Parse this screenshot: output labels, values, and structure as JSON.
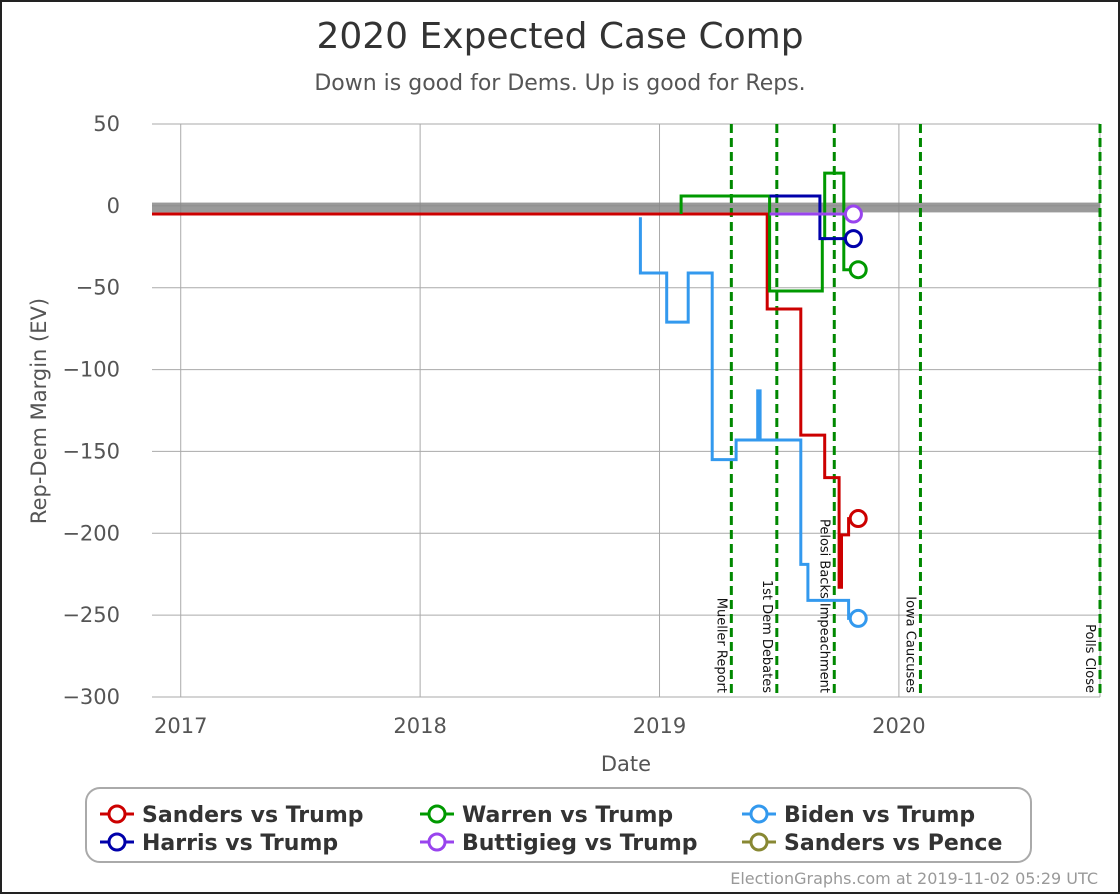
{
  "chart_data": {
    "type": "line",
    "title": "2020 Expected Case Comp",
    "subtitle": "Down is good for Dems. Up is good for Reps.",
    "xlabel": "Date",
    "ylabel": "Rep-Dem Margin (EV)",
    "xlim": [
      2016.88,
      2020.84
    ],
    "ylim": [
      -300,
      50
    ],
    "x_ticks": [
      {
        "value": 2017,
        "label": "2017"
      },
      {
        "value": 2018,
        "label": "2018"
      },
      {
        "value": 2019,
        "label": "2019"
      },
      {
        "value": 2020,
        "label": "2020"
      }
    ],
    "y_ticks": [
      {
        "value": 50,
        "label": "50"
      },
      {
        "value": 0,
        "label": "0"
      },
      {
        "value": -50,
        "label": "−50"
      },
      {
        "value": -100,
        "label": "−100"
      },
      {
        "value": -150,
        "label": "−150"
      },
      {
        "value": -200,
        "label": "−200"
      },
      {
        "value": -250,
        "label": "−250"
      },
      {
        "value": -300,
        "label": "−300"
      }
    ],
    "grid": true,
    "zero_band": [
      -4,
      2
    ],
    "events": [
      {
        "label": "Mueller Report",
        "x": 2019.3
      },
      {
        "label": "1st Dem Debates",
        "x": 2019.49
      },
      {
        "label": "Pelosi Backs Impeachment",
        "x": 2019.73
      },
      {
        "label": "Iowa Caucuses",
        "x": 2020.09
      },
      {
        "label": "Polls Close",
        "x": 2020.84
      }
    ],
    "series": [
      {
        "name": "Sanders vs Trump",
        "color": "#cc0000",
        "points": [
          [
            2016.88,
            -5
          ],
          [
            2019.45,
            -5
          ],
          [
            2019.45,
            -63
          ],
          [
            2019.59,
            -63
          ],
          [
            2019.59,
            -140
          ],
          [
            2019.69,
            -140
          ],
          [
            2019.69,
            -166
          ],
          [
            2019.75,
            -166
          ],
          [
            2019.75,
            -233
          ],
          [
            2019.76,
            -233
          ],
          [
            2019.76,
            -201
          ],
          [
            2019.79,
            -201
          ],
          [
            2019.79,
            -191
          ],
          [
            2019.83,
            -191
          ]
        ],
        "end_marker": [
          2019.83,
          -191
        ]
      },
      {
        "name": "Warren vs Trump",
        "color": "#009900",
        "points": [
          [
            2019.09,
            -5
          ],
          [
            2019.09,
            6
          ],
          [
            2019.46,
            6
          ],
          [
            2019.46,
            -52
          ],
          [
            2019.68,
            -52
          ],
          [
            2019.68,
            -20
          ],
          [
            2019.69,
            -20
          ],
          [
            2019.69,
            20
          ],
          [
            2019.77,
            20
          ],
          [
            2019.77,
            -39
          ],
          [
            2019.83,
            -39
          ]
        ],
        "end_marker": [
          2019.83,
          -39
        ]
      },
      {
        "name": "Biden vs Trump",
        "color": "#3399ee",
        "points": [
          [
            2018.92,
            -7
          ],
          [
            2018.92,
            -41
          ],
          [
            2019.03,
            -41
          ],
          [
            2019.03,
            -71
          ],
          [
            2019.12,
            -71
          ],
          [
            2019.12,
            -41
          ],
          [
            2019.22,
            -41
          ],
          [
            2019.22,
            -155
          ],
          [
            2019.32,
            -155
          ],
          [
            2019.32,
            -143
          ],
          [
            2019.41,
            -143
          ],
          [
            2019.41,
            -113
          ],
          [
            2019.42,
            -113
          ],
          [
            2019.42,
            -143
          ],
          [
            2019.59,
            -143
          ],
          [
            2019.59,
            -219
          ],
          [
            2019.62,
            -219
          ],
          [
            2019.62,
            -241
          ],
          [
            2019.79,
            -241
          ],
          [
            2019.79,
            -252
          ],
          [
            2019.83,
            -252
          ]
        ],
        "end_marker": [
          2019.83,
          -252
        ]
      },
      {
        "name": "Harris vs Trump",
        "color": "#0000aa",
        "points": [
          [
            2019.46,
            6
          ],
          [
            2019.67,
            6
          ],
          [
            2019.67,
            -20
          ],
          [
            2019.81,
            -20
          ]
        ],
        "end_marker": [
          2019.81,
          -20
        ]
      },
      {
        "name": "Buttigieg vs Trump",
        "color": "#9944ee",
        "points": [
          [
            2019.46,
            -5
          ],
          [
            2019.81,
            -5
          ]
        ],
        "end_marker": [
          2019.81,
          -5
        ]
      },
      {
        "name": "Sanders vs Pence",
        "color": "#888833",
        "points": [],
        "end_marker": null
      }
    ],
    "legend_position": "bottom"
  },
  "credit": "ElectionGraphs.com at 2019-11-02 05:29 UTC"
}
